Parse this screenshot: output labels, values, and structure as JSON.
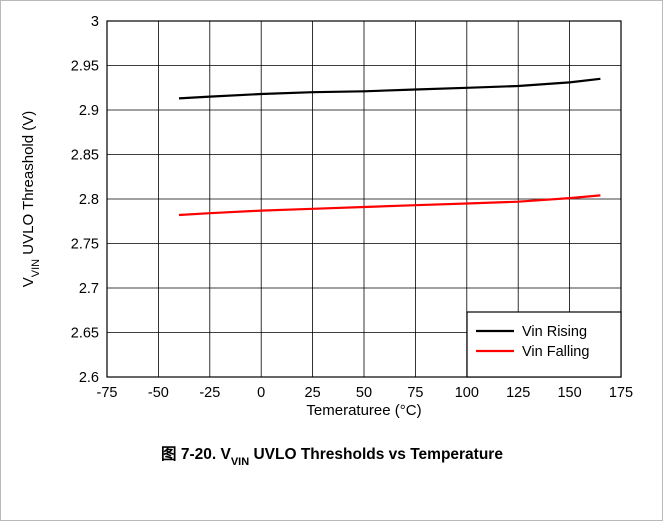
{
  "chart_data": {
    "type": "line",
    "xlabel_parts": [
      "Temeraturee (",
      "°",
      "C)"
    ],
    "ylabel_parts": [
      "V",
      "VIN",
      " UVLO Threashold  (V)"
    ],
    "caption_parts": [
      "图 7-20. V",
      "VIN",
      " UVLO Thresholds vs Temperature"
    ],
    "xlim": [
      -75,
      175
    ],
    "ylim": [
      2.6,
      3.0
    ],
    "xticks": [
      "-75",
      "-50",
      "-25",
      "0",
      "25",
      "50",
      "75",
      "100",
      "125",
      "150",
      "175"
    ],
    "yticks": [
      "3",
      "2.95",
      "2.9",
      "2.85",
      "2.8",
      "2.75",
      "2.7",
      "2.65",
      "2.6"
    ],
    "grid": true,
    "legend_position": "bottom-right",
    "series": [
      {
        "name": "Vin Rising",
        "color": "#000000",
        "x": [
          -40,
          -25,
          0,
          25,
          50,
          75,
          100,
          125,
          150,
          165
        ],
        "y": [
          2.913,
          2.915,
          2.918,
          2.92,
          2.921,
          2.923,
          2.925,
          2.927,
          2.931,
          2.935
        ]
      },
      {
        "name": "Vin Falling",
        "color": "#ff0000",
        "x": [
          -40,
          -25,
          0,
          25,
          50,
          75,
          100,
          125,
          150,
          165
        ],
        "y": [
          2.782,
          2.784,
          2.787,
          2.789,
          2.791,
          2.793,
          2.795,
          2.797,
          2.801,
          2.804
        ]
      }
    ]
  }
}
